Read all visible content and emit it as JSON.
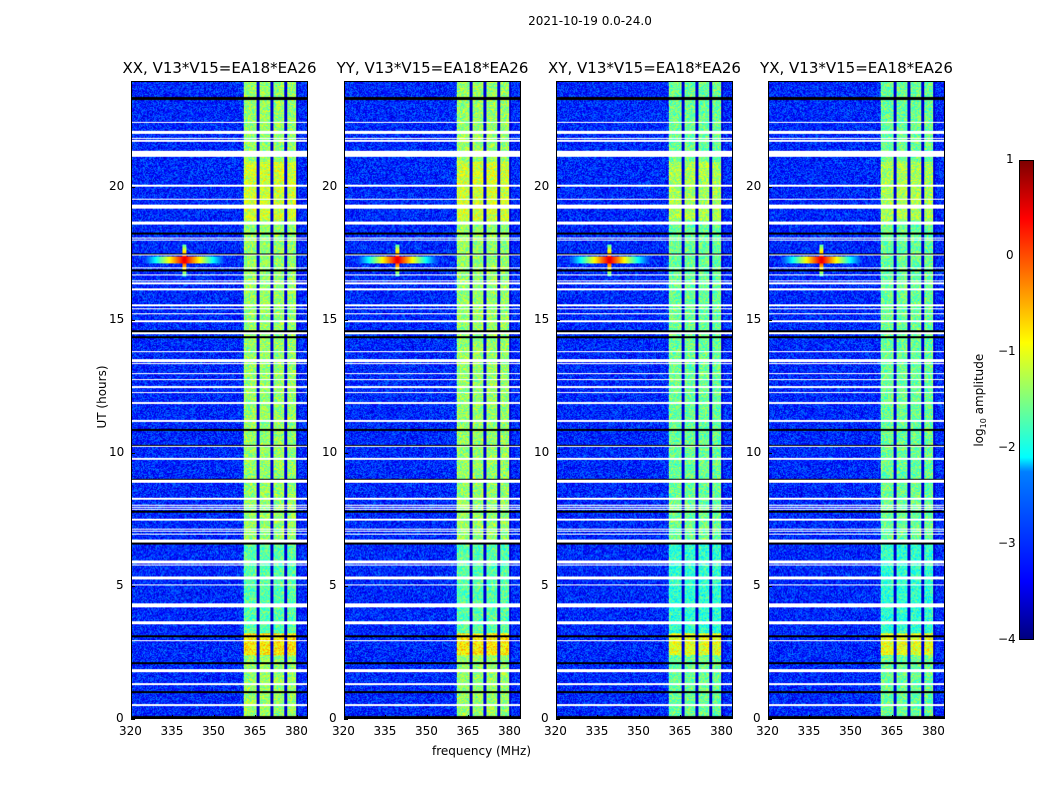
{
  "chart_data": {
    "type": "heatmap",
    "title": "2021-10-19 0.0-24.0",
    "xlabel": "frequency (MHz)",
    "ylabel": "UT (hours)",
    "xlim": [
      320,
      384
    ],
    "ylim": [
      0,
      24
    ],
    "xticks": [
      "320",
      "335",
      "350",
      "365",
      "380"
    ],
    "yticks": [
      "0",
      "5",
      "10",
      "15",
      "20"
    ],
    "panels": [
      {
        "title": "XX, V13*V15=EA18*EA26"
      },
      {
        "title": "YY, V13*V15=EA18*EA26"
      },
      {
        "title": "XY, V13*V15=EA18*EA26"
      },
      {
        "title": "YX, V13*V15=EA18*EA26"
      }
    ],
    "colorbar": {
      "label": "log10 amplitude",
      "label_main": "log",
      "label_sub": "10",
      "label_rest": " amplitude",
      "range": [
        -4,
        1
      ],
      "ticks": [
        "1",
        "0",
        "−1",
        "−2",
        "−3",
        "−4"
      ]
    },
    "background_level": -3.2,
    "rfi_band_mhz": [
      360.5,
      380.5
    ],
    "rfi_band_level": -1.4,
    "rfi_spike": {
      "freq_mhz": 339,
      "time_h": 17.3,
      "level": 0.5
    },
    "flagged_hours": [
      21.25,
      21.35,
      15.0,
      14.55,
      6.7,
      4.3,
      4.25,
      1.3,
      0.5,
      20.1,
      19.3,
      18.7,
      16.2,
      15.6,
      13.5,
      12.5,
      11.9,
      9.8,
      8.3,
      7.5,
      5.9,
      5.3,
      3.6,
      1.8
    ],
    "zero_hours": [
      23.4,
      18.3,
      17.5,
      16.9,
      10.9,
      10.3,
      9.0,
      7.8,
      6.6,
      3.1,
      2.1,
      1.0,
      0.05,
      14.6,
      14.4
    ]
  }
}
